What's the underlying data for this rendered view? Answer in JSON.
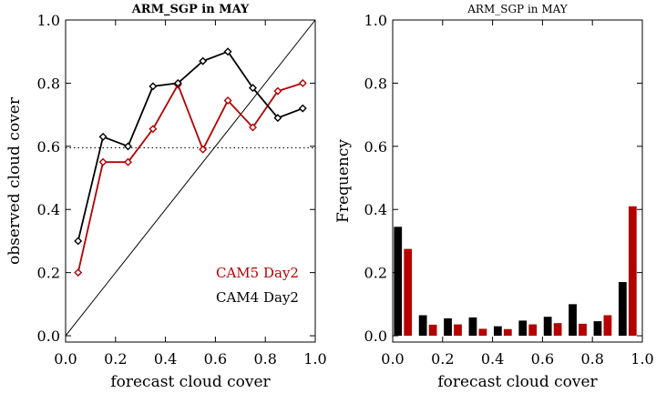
{
  "chart_data": [
    {
      "type": "line",
      "title": "ARM_SGP in MAY",
      "xlabel": "forecast cloud cover",
      "ylabel": "observed cloud cover",
      "xlim": [
        0.0,
        1.0
      ],
      "ylim": [
        -0.02,
        1.0
      ],
      "xticks": [
        "0.0",
        "0.2",
        "0.4",
        "0.6",
        "0.8",
        "1.0"
      ],
      "yticks": [
        "0.0",
        "0.2",
        "0.4",
        "0.6",
        "0.8",
        "1.0"
      ],
      "x": [
        0.05,
        0.15,
        0.25,
        0.35,
        0.45,
        0.55,
        0.65,
        0.75,
        0.85,
        0.95
      ],
      "series": [
        {
          "name": "CAM5 Day2",
          "color": "#b40000",
          "marker": "diamond",
          "values": [
            0.2,
            0.55,
            0.55,
            0.655,
            0.795,
            0.59,
            0.745,
            0.66,
            0.775,
            0.8
          ]
        },
        {
          "name": "CAM4 Day2",
          "color": "#000000",
          "marker": "diamond",
          "values": [
            0.3,
            0.63,
            0.6,
            0.79,
            0.8,
            0.87,
            0.9,
            0.785,
            0.69,
            0.72
          ]
        }
      ],
      "reference_line": {
        "description": "1:1 diagonal",
        "from": [
          0.0,
          0.0
        ],
        "to": [
          1.0,
          1.0
        ]
      },
      "hline": {
        "y": 0.595,
        "style": "dotted"
      },
      "legend": [
        "CAM5 Day2",
        "CAM4 Day2"
      ],
      "legend_position": "bottom-right"
    },
    {
      "type": "bar",
      "title": "ARM_SGP in MAY",
      "xlabel": "forecast cloud cover",
      "ylabel": "Frequency",
      "xlim": [
        0.0,
        1.0
      ],
      "ylim": [
        -0.02,
        1.0
      ],
      "xticks": [
        "0.0",
        "0.2",
        "0.4",
        "0.6",
        "0.8",
        "1.0"
      ],
      "yticks": [
        "0.0",
        "0.2",
        "0.4",
        "0.6",
        "0.8",
        "1.0"
      ],
      "bin_centers": [
        0.05,
        0.15,
        0.25,
        0.35,
        0.45,
        0.55,
        0.65,
        0.75,
        0.85,
        0.95
      ],
      "series": [
        {
          "name": "CAM4 Day2",
          "color": "#000000",
          "values": [
            0.345,
            0.065,
            0.055,
            0.058,
            0.03,
            0.048,
            0.06,
            0.1,
            0.046,
            0.17
          ]
        },
        {
          "name": "CAM5 Day2",
          "color": "#b40000",
          "values": [
            0.275,
            0.035,
            0.036,
            0.022,
            0.021,
            0.036,
            0.04,
            0.038,
            0.065,
            0.41
          ]
        }
      ]
    }
  ]
}
